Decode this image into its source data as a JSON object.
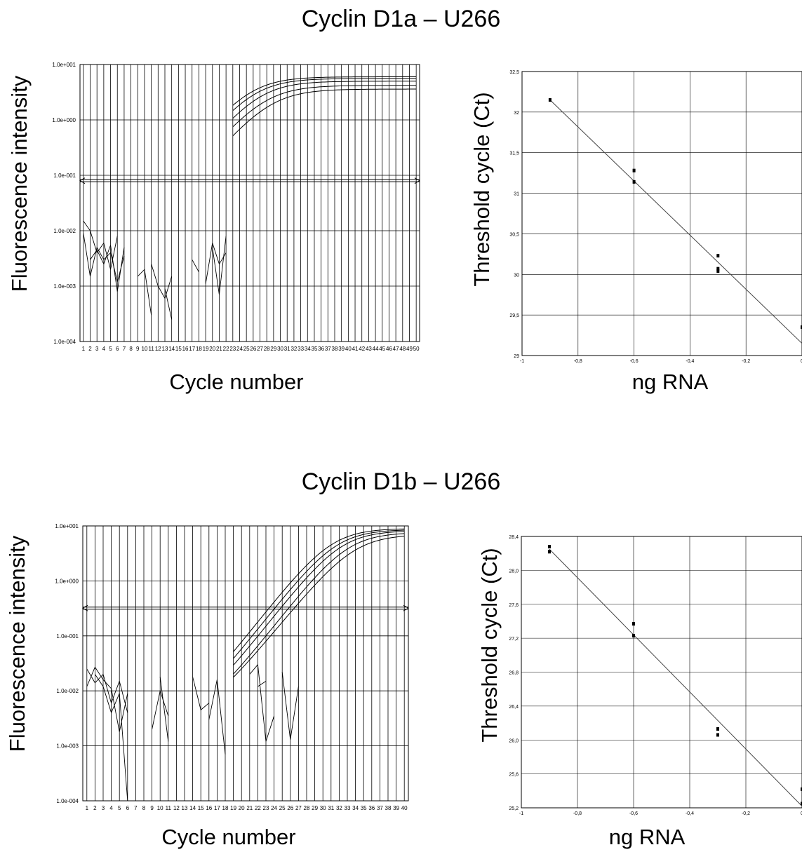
{
  "sections": [
    {
      "title": "Cyclin D1a – U266"
    },
    {
      "title": "Cyclin D1b – U266"
    }
  ],
  "chart_data": [
    {
      "type": "line",
      "title": "Cyclin D1a – U266",
      "xlabel": "Cycle number",
      "ylabel": "Fluorescence intensity",
      "yscale": "log",
      "ylim": [
        0.0001,
        10
      ],
      "yticks": [
        "1.0e-004",
        "1.0e-003",
        "1.0e-002",
        "1.0e-001",
        "1.0e+000",
        "1.0e+001"
      ],
      "xlim": [
        1,
        50
      ],
      "xticks": [
        "1",
        "2",
        "3",
        "4",
        "5",
        "6",
        "7",
        "8",
        "9",
        "10",
        "11",
        "12",
        "13",
        "14",
        "15",
        "16",
        "17",
        "18",
        "19",
        "20",
        "21",
        "22",
        "23",
        "24",
        "25",
        "26",
        "27",
        "28",
        "29",
        "30",
        "31",
        "32",
        "33",
        "34",
        "35",
        "36",
        "37",
        "38",
        "39",
        "40",
        "41",
        "42",
        "43",
        "44",
        "45",
        "46",
        "47",
        "48",
        "49",
        "50"
      ],
      "threshold": 0.08,
      "grid": true,
      "series": [
        {
          "midpoint": 25.4,
          "plateau": 6.0,
          "slope": 2.9
        },
        {
          "midpoint": 26.0,
          "plateau": 5.6,
          "slope": 2.9
        },
        {
          "midpoint": 26.8,
          "plateau": 5.0,
          "slope": 2.9
        },
        {
          "midpoint": 27.6,
          "plateau": 4.2,
          "slope": 3.0
        },
        {
          "midpoint": 28.4,
          "plateau": 3.6,
          "slope": 3.0
        }
      ],
      "noise": [
        {
          "x": [
            1,
            2,
            3,
            4,
            5,
            6,
            7
          ],
          "y": [
            0.009,
            0.0015,
            0.005,
            0.003,
            0.004,
            0.0012,
            0.0035
          ]
        },
        {
          "x": [
            1,
            2,
            3,
            4,
            5,
            6
          ],
          "y": [
            0.015,
            0.01,
            0.004,
            0.006,
            0.002,
            0.008
          ]
        },
        {
          "x": [
            2,
            3,
            4,
            5,
            6,
            7
          ],
          "y": [
            0.003,
            0.0045,
            0.0025,
            0.0055,
            0.0008,
            0.005
          ]
        },
        {
          "x": [
            9,
            10,
            11
          ],
          "y": [
            0.0015,
            0.002,
            0.0003
          ]
        },
        {
          "x": [
            11,
            12,
            13,
            14
          ],
          "y": [
            0.0025,
            0.001,
            0.0006,
            0.0015
          ]
        },
        {
          "x": [
            13,
            14
          ],
          "y": [
            0.0009,
            0.00025
          ]
        },
        {
          "x": [
            17,
            18
          ],
          "y": [
            0.003,
            0.0018
          ]
        },
        {
          "x": [
            19,
            20,
            21,
            22
          ],
          "y": [
            0.0011,
            0.006,
            0.0025,
            0.004
          ]
        },
        {
          "x": [
            20,
            21,
            22
          ],
          "y": [
            0.005,
            0.0007,
            0.008
          ]
        }
      ]
    },
    {
      "type": "scatter",
      "title": "Cyclin D1a – U266",
      "xlabel": "ng RNA",
      "ylabel": "Threshold cycle (Ct)",
      "xlim": [
        -1,
        0
      ],
      "ylim": [
        29,
        32.5
      ],
      "xticks": [
        "-1",
        "-0,8",
        "-0,6",
        "-0,4",
        "-0,2",
        "0"
      ],
      "yticks": [
        "29",
        "29,5",
        "30",
        "30,5",
        "31",
        "31,5",
        "32",
        "32,5"
      ],
      "grid": true,
      "points": [
        {
          "x": -0.9,
          "y": 32.15
        },
        {
          "x": -0.6,
          "y": 31.28
        },
        {
          "x": -0.6,
          "y": 31.14
        },
        {
          "x": -0.3,
          "y": 30.23
        },
        {
          "x": -0.3,
          "y": 30.07
        },
        {
          "x": -0.3,
          "y": 30.04
        },
        {
          "x": 0.0,
          "y": 29.35
        }
      ],
      "fit": {
        "x": [
          -0.9,
          0.0
        ],
        "y": [
          32.15,
          29.15
        ]
      }
    },
    {
      "type": "line",
      "title": "Cyclin D1b – U266",
      "xlabel": "Cycle number",
      "ylabel": "Fluorescence intensity",
      "yscale": "log",
      "ylim": [
        0.0001,
        10
      ],
      "yticks": [
        "1.0e-004",
        "1.0e-003",
        "1.0e-002",
        "1.0e-001",
        "1.0e+000",
        "1.0e+001"
      ],
      "xlim": [
        1,
        40
      ],
      "xticks": [
        "1",
        "2",
        "3",
        "4",
        "5",
        "6",
        "7",
        "8",
        "9",
        "10",
        "11",
        "12",
        "13",
        "14",
        "15",
        "16",
        "17",
        "18",
        "19",
        "20",
        "21",
        "22",
        "23",
        "24",
        "25",
        "26",
        "27",
        "28",
        "29",
        "30",
        "31",
        "32",
        "33",
        "34",
        "35",
        "36",
        "37",
        "38",
        "39",
        "40"
      ],
      "threshold": 0.32,
      "grid": true,
      "series": [
        {
          "midpoint": 31.0,
          "plateau": 9.0,
          "slope": 2.3
        },
        {
          "midpoint": 31.6,
          "plateau": 8.6,
          "slope": 2.3
        },
        {
          "midpoint": 32.2,
          "plateau": 8.2,
          "slope": 2.3
        },
        {
          "midpoint": 33.0,
          "plateau": 7.6,
          "slope": 2.3
        },
        {
          "midpoint": 33.8,
          "plateau": 7.0,
          "slope": 2.4
        }
      ],
      "noise": [
        {
          "x": [
            1,
            2,
            3,
            4,
            5,
            6
          ],
          "y": [
            0.025,
            0.014,
            0.02,
            0.006,
            0.015,
            0.004
          ]
        },
        {
          "x": [
            1,
            2,
            3,
            4,
            5,
            6
          ],
          "y": [
            0.012,
            0.027,
            0.016,
            0.011,
            0.0018,
            0.009
          ]
        },
        {
          "x": [
            2,
            3,
            4,
            5,
            6
          ],
          "y": [
            0.02,
            0.012,
            0.004,
            0.009,
            0.0001
          ]
        },
        {
          "x": [
            9,
            10,
            11
          ],
          "y": [
            0.002,
            0.01,
            0.0035
          ]
        },
        {
          "x": [
            10,
            11
          ],
          "y": [
            0.018,
            0.0012
          ]
        },
        {
          "x": [
            14,
            15,
            16
          ],
          "y": [
            0.018,
            0.0045,
            0.006
          ]
        },
        {
          "x": [
            16,
            17,
            18
          ],
          "y": [
            0.003,
            0.016,
            0.0007
          ]
        },
        {
          "x": [
            21,
            22,
            23,
            24
          ],
          "y": [
            0.02,
            0.03,
            0.0012,
            0.0035
          ]
        },
        {
          "x": [
            22,
            23
          ],
          "y": [
            0.012,
            0.015
          ]
        },
        {
          "x": [
            25,
            26,
            27
          ],
          "y": [
            0.022,
            0.0013,
            0.012
          ]
        }
      ]
    },
    {
      "type": "scatter",
      "title": "Cyclin D1b – U266",
      "xlabel": "ng RNA",
      "ylabel": "Threshold cycle (Ct)",
      "xlim": [
        -1,
        0
      ],
      "ylim": [
        25.2,
        28.4
      ],
      "xticks": [
        "-1",
        "-0,8",
        "-0,6",
        "-0,4",
        "-0,2",
        "0"
      ],
      "yticks": [
        "25,2",
        "25,6",
        "26,0",
        "26,4",
        "26,8",
        "27,2",
        "27,6",
        "28,0",
        "28,4"
      ],
      "grid": true,
      "points": [
        {
          "x": -0.9,
          "y": 28.28
        },
        {
          "x": -0.9,
          "y": 28.22
        },
        {
          "x": -0.6,
          "y": 27.37
        },
        {
          "x": -0.6,
          "y": 27.23
        },
        {
          "x": -0.3,
          "y": 26.13
        },
        {
          "x": -0.3,
          "y": 26.06
        },
        {
          "x": 0.0,
          "y": 25.42
        },
        {
          "x": 0.0,
          "y": 25.25
        }
      ],
      "fit": {
        "x": [
          -0.9,
          0.0
        ],
        "y": [
          28.25,
          25.22
        ]
      }
    }
  ]
}
